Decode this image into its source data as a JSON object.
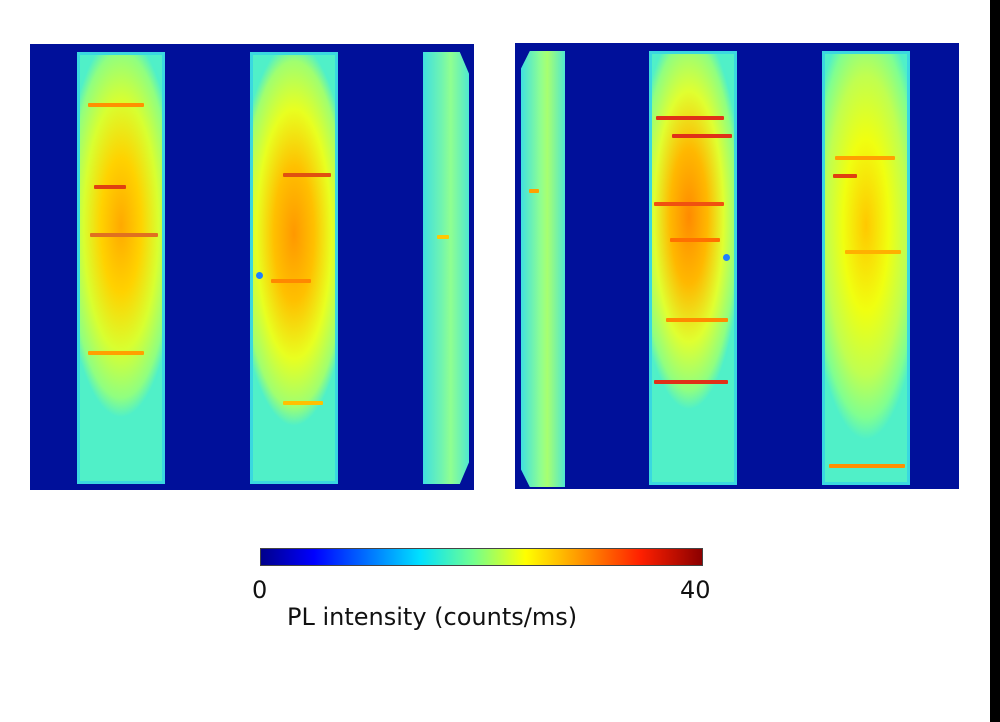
{
  "colorbar": {
    "min_label": "0",
    "max_label": "40",
    "label": "PL intensity (counts/ms)",
    "colormap": "jet"
  },
  "colors": {
    "background_blue": "#00109a",
    "strip_edge": "#2fd6e8",
    "strip_mid": "#c8ff40",
    "strip_hot": "#ffb000",
    "stripe_red": "#e0301a"
  }
}
